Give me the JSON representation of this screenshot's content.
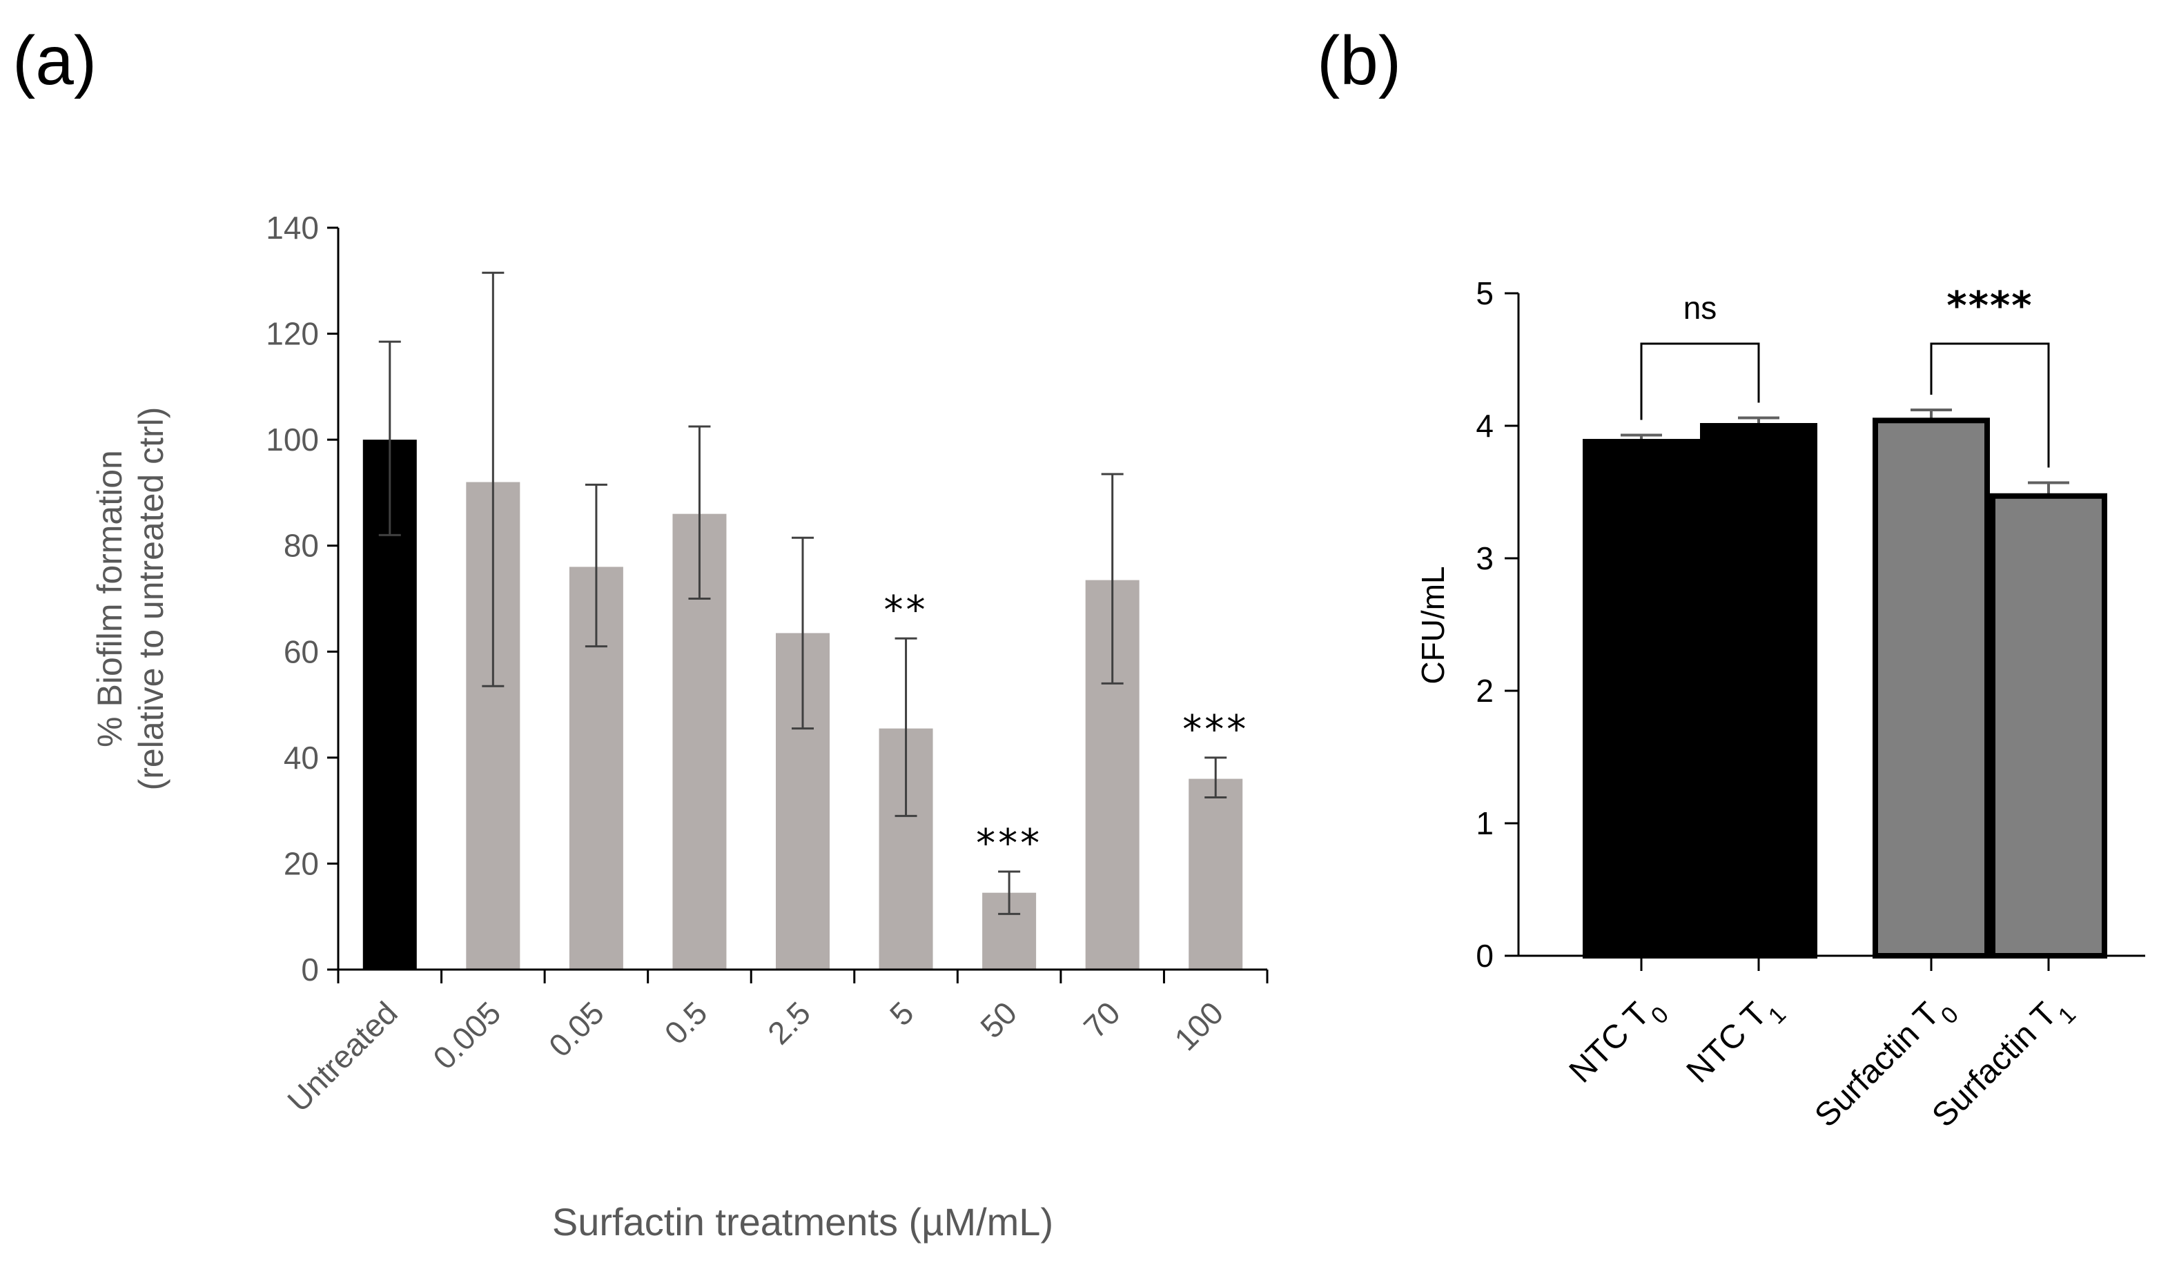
{
  "chart_data": [
    {
      "panel_label": "(a)",
      "type": "bar",
      "title": "",
      "xlabel": "Surfactin treatments (µM/mL)",
      "ylabel_lines": [
        "% Biofilm formation",
        "(relative to untreated ctrl)"
      ],
      "ylim": [
        0,
        140
      ],
      "yticks": [
        0,
        20,
        40,
        60,
        80,
        100,
        120,
        140
      ],
      "categories": [
        "Untreated",
        "0.005",
        "0.05",
        "0.5",
        "2.5",
        "5",
        "50",
        "70",
        "100"
      ],
      "values": [
        100,
        92,
        76,
        86,
        63.5,
        45.5,
        14.5,
        73.5,
        36
      ],
      "error_low": [
        82,
        53.5,
        61,
        70,
        45.5,
        29,
        10.5,
        54,
        32.5
      ],
      "error_high": [
        118.5,
        131.5,
        91.5,
        102.5,
        81.5,
        62.5,
        18.5,
        93.5,
        40
      ],
      "colors": [
        "#000000",
        "#b3adab",
        "#b3adab",
        "#b3adab",
        "#b3adab",
        "#b3adab",
        "#b3adab",
        "#b3adab",
        "#b3adab"
      ],
      "significance": [
        "",
        "",
        "",
        "",
        "",
        "**",
        "***",
        "",
        "***"
      ],
      "grid": false
    },
    {
      "panel_label": "(b)",
      "type": "bar",
      "title": "",
      "xlabel": "",
      "ylabel": "CFU/mL",
      "ylim": [
        0,
        5
      ],
      "yticks": [
        0,
        1,
        2,
        3,
        4,
        5
      ],
      "categories": [
        {
          "base": "NTC T",
          "sub": "0"
        },
        {
          "base": "NTC T",
          "sub": "1"
        },
        {
          "base": "Surfactin T",
          "sub": "0"
        },
        {
          "base": "Surfactin T",
          "sub": "1"
        }
      ],
      "values": [
        3.88,
        4.0,
        4.04,
        3.47
      ],
      "error_high": [
        3.93,
        4.06,
        4.12,
        3.57
      ],
      "colors": [
        "#000000",
        "#000000",
        "#808080",
        "#808080"
      ],
      "comparisons": [
        {
          "from": 0,
          "to": 1,
          "label": "ns"
        },
        {
          "from": 2,
          "to": 3,
          "label": "****"
        }
      ],
      "grid": false
    }
  ]
}
